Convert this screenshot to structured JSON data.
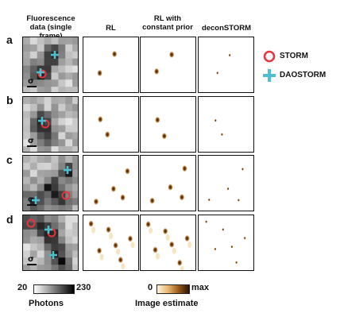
{
  "columns": [
    "Fluorescence\ndata (single frame)",
    "RL",
    "RL with\nconstant prior",
    "deconSTORM"
  ],
  "rows": [
    "a",
    "b",
    "c",
    "d"
  ],
  "scale_symbol": "σ",
  "legend": {
    "storm": "STORM",
    "daostorm": "DAOSTORM"
  },
  "colorbars": {
    "photons": {
      "min": "20",
      "max": "230",
      "label": "Photons"
    },
    "estimate": {
      "min": "0",
      "max": "max",
      "label": "Image estimate"
    }
  },
  "colors": {
    "storm": "#e8353d",
    "daostorm": "#4fbfd0",
    "estimate_dark": "#2a1400",
    "estimate_light": "#f2d8a8"
  }
}
